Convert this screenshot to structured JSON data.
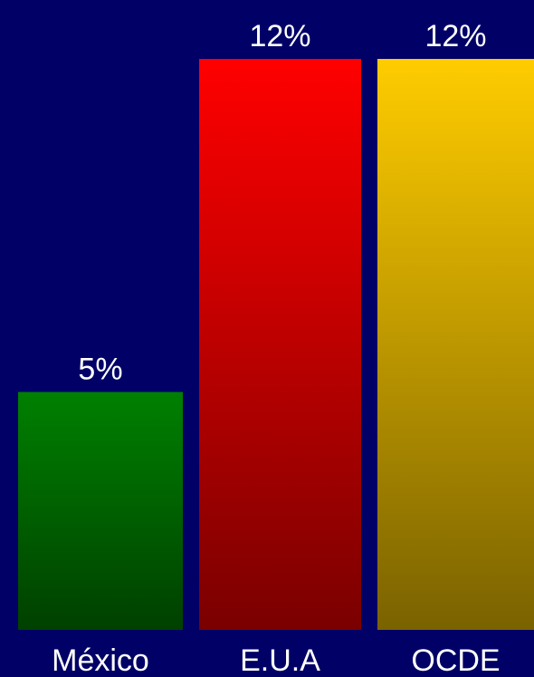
{
  "chart_data": {
    "type": "bar",
    "categories": [
      "México",
      "E.U.A",
      "OCDE"
    ],
    "values": [
      5,
      12,
      12
    ],
    "data_labels": [
      "5%",
      "12%",
      "12%"
    ],
    "unit": "%",
    "title": "",
    "xlabel": "",
    "ylabel": "",
    "ylim": [
      0,
      12
    ],
    "grid": false,
    "legend": "none",
    "colors": {
      "background": "#000066",
      "bars": [
        {
          "top": "#008000",
          "bottom": "#004000"
        },
        {
          "top": "#ff0000",
          "bottom": "#7a0000"
        },
        {
          "top": "#ffcc00",
          "bottom": "#7a6200"
        }
      ],
      "text": "#ffffff"
    }
  }
}
